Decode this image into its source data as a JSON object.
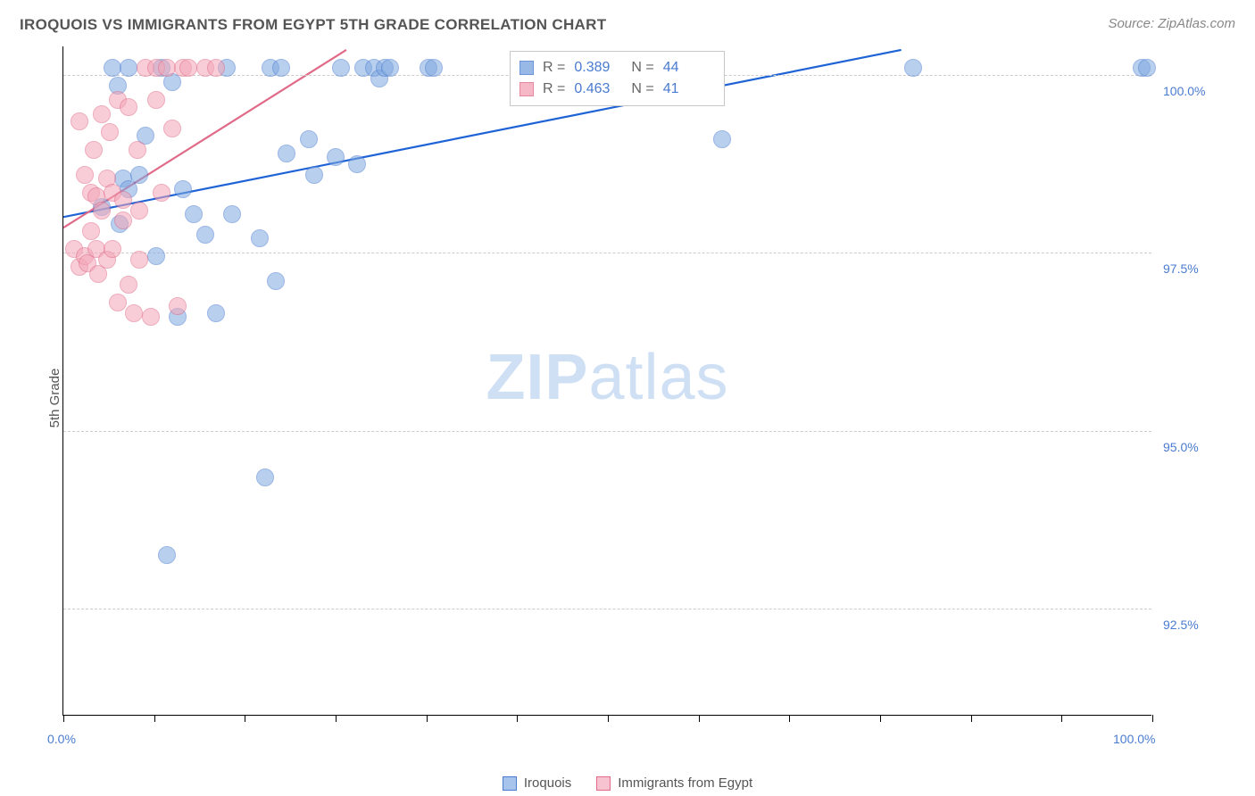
{
  "title": "IROQUOIS VS IMMIGRANTS FROM EGYPT 5TH GRADE CORRELATION CHART",
  "source": "Source: ZipAtlas.com",
  "watermark_bold": "ZIP",
  "watermark_light": "atlas",
  "y_axis_title": "5th Grade",
  "chart": {
    "type": "scatter",
    "xlim": [
      0,
      100
    ],
    "ylim": [
      91,
      100.4
    ],
    "x_ticks": [
      0,
      8.33,
      16.67,
      25,
      33.33,
      41.67,
      50,
      58.33,
      66.67,
      75,
      83.33,
      91.67,
      100
    ],
    "x_tick_labels": {
      "0": "0.0%",
      "100": "100.0%"
    },
    "y_gridlines": [
      92.5,
      95.0,
      97.5,
      100.0
    ],
    "y_tick_labels": [
      "92.5%",
      "95.0%",
      "97.5%",
      "100.0%"
    ],
    "background_color": "#ffffff",
    "grid_color": "#cccccc",
    "axis_color": "#000000",
    "label_color": "#4a7bd0",
    "marker_radius": 10,
    "marker_opacity": 0.55,
    "marker_stroke_opacity": 0.9,
    "watermark_color": "#cfe0f5",
    "series": [
      {
        "name": "Iroquois",
        "fill": "#7fa8e0",
        "stroke": "#4a7bd0",
        "r_label": "R =",
        "r_value": "0.389",
        "n_label": "N =",
        "n_value": "44",
        "points": [
          [
            3.5,
            98.15
          ],
          [
            4.5,
            100.1
          ],
          [
            5,
            99.85
          ],
          [
            5.2,
            97.9
          ],
          [
            5.5,
            98.55
          ],
          [
            6,
            100.1
          ],
          [
            6,
            98.4
          ],
          [
            7,
            98.6
          ],
          [
            7.5,
            99.15
          ],
          [
            8.5,
            97.45
          ],
          [
            9,
            100.1
          ],
          [
            9.5,
            93.25
          ],
          [
            10,
            99.9
          ],
          [
            10.5,
            96.6
          ],
          [
            11,
            98.4
          ],
          [
            12,
            98.05
          ],
          [
            13,
            97.75
          ],
          [
            14,
            96.65
          ],
          [
            15,
            100.1
          ],
          [
            15.5,
            98.05
          ],
          [
            18,
            97.7
          ],
          [
            18.5,
            94.35
          ],
          [
            19,
            100.1
          ],
          [
            19.5,
            97.1
          ],
          [
            20,
            100.1
          ],
          [
            20.5,
            98.9
          ],
          [
            22.5,
            99.1
          ],
          [
            23,
            98.6
          ],
          [
            25,
            98.85
          ],
          [
            25.5,
            100.1
          ],
          [
            27,
            98.75
          ],
          [
            27.5,
            100.1
          ],
          [
            28.5,
            100.1
          ],
          [
            29,
            99.95
          ],
          [
            29.5,
            100.1
          ],
          [
            30,
            100.1
          ],
          [
            33.5,
            100.1
          ],
          [
            34,
            100.1
          ],
          [
            43,
            100.1
          ],
          [
            56,
            99.9
          ],
          [
            60.5,
            99.1
          ],
          [
            78,
            100.1
          ],
          [
            99,
            100.1
          ],
          [
            99.5,
            100.1
          ]
        ],
        "trend": {
          "x1": 0,
          "y1": 98.0,
          "x2": 77,
          "y2": 100.35,
          "color": "#1e63d6",
          "width": 2.2
        }
      },
      {
        "name": "Immigrants from Egypt",
        "fill": "#f4a6b8",
        "stroke": "#e06a87",
        "r_label": "R =",
        "r_value": "0.463",
        "n_label": "N =",
        "n_value": "41",
        "points": [
          [
            1,
            97.55
          ],
          [
            1.5,
            97.3
          ],
          [
            1.5,
            99.35
          ],
          [
            2,
            98.6
          ],
          [
            2,
            97.45
          ],
          [
            2.2,
            97.35
          ],
          [
            2.5,
            97.8
          ],
          [
            2.5,
            98.35
          ],
          [
            2.8,
            98.95
          ],
          [
            3,
            97.55
          ],
          [
            3,
            98.3
          ],
          [
            3.2,
            97.2
          ],
          [
            3.5,
            99.45
          ],
          [
            3.5,
            98.1
          ],
          [
            4,
            98.55
          ],
          [
            4,
            97.4
          ],
          [
            4.3,
            99.2
          ],
          [
            4.5,
            98.35
          ],
          [
            4.5,
            97.55
          ],
          [
            5,
            99.65
          ],
          [
            5,
            96.8
          ],
          [
            5.5,
            98.25
          ],
          [
            5.5,
            97.95
          ],
          [
            6,
            99.55
          ],
          [
            6,
            97.05
          ],
          [
            6.5,
            96.65
          ],
          [
            6.8,
            98.95
          ],
          [
            7,
            98.1
          ],
          [
            7,
            97.4
          ],
          [
            7.5,
            100.1
          ],
          [
            8,
            96.6
          ],
          [
            8.5,
            100.1
          ],
          [
            8.5,
            99.65
          ],
          [
            9,
            98.35
          ],
          [
            9.5,
            100.1
          ],
          [
            10,
            99.25
          ],
          [
            10.5,
            96.75
          ],
          [
            11,
            100.1
          ],
          [
            11.5,
            100.1
          ],
          [
            13,
            100.1
          ],
          [
            14,
            100.1
          ]
        ],
        "trend": {
          "x1": 0,
          "y1": 97.85,
          "x2": 26,
          "y2": 100.35,
          "color": "#e06a87",
          "width": 2.2
        }
      }
    ]
  },
  "legend": [
    {
      "label": "Iroquois",
      "fill": "#a7c4ec",
      "stroke": "#4a7bd0"
    },
    {
      "label": "Immigrants from Egypt",
      "fill": "#f7c3d0",
      "stroke": "#e06a87"
    }
  ]
}
